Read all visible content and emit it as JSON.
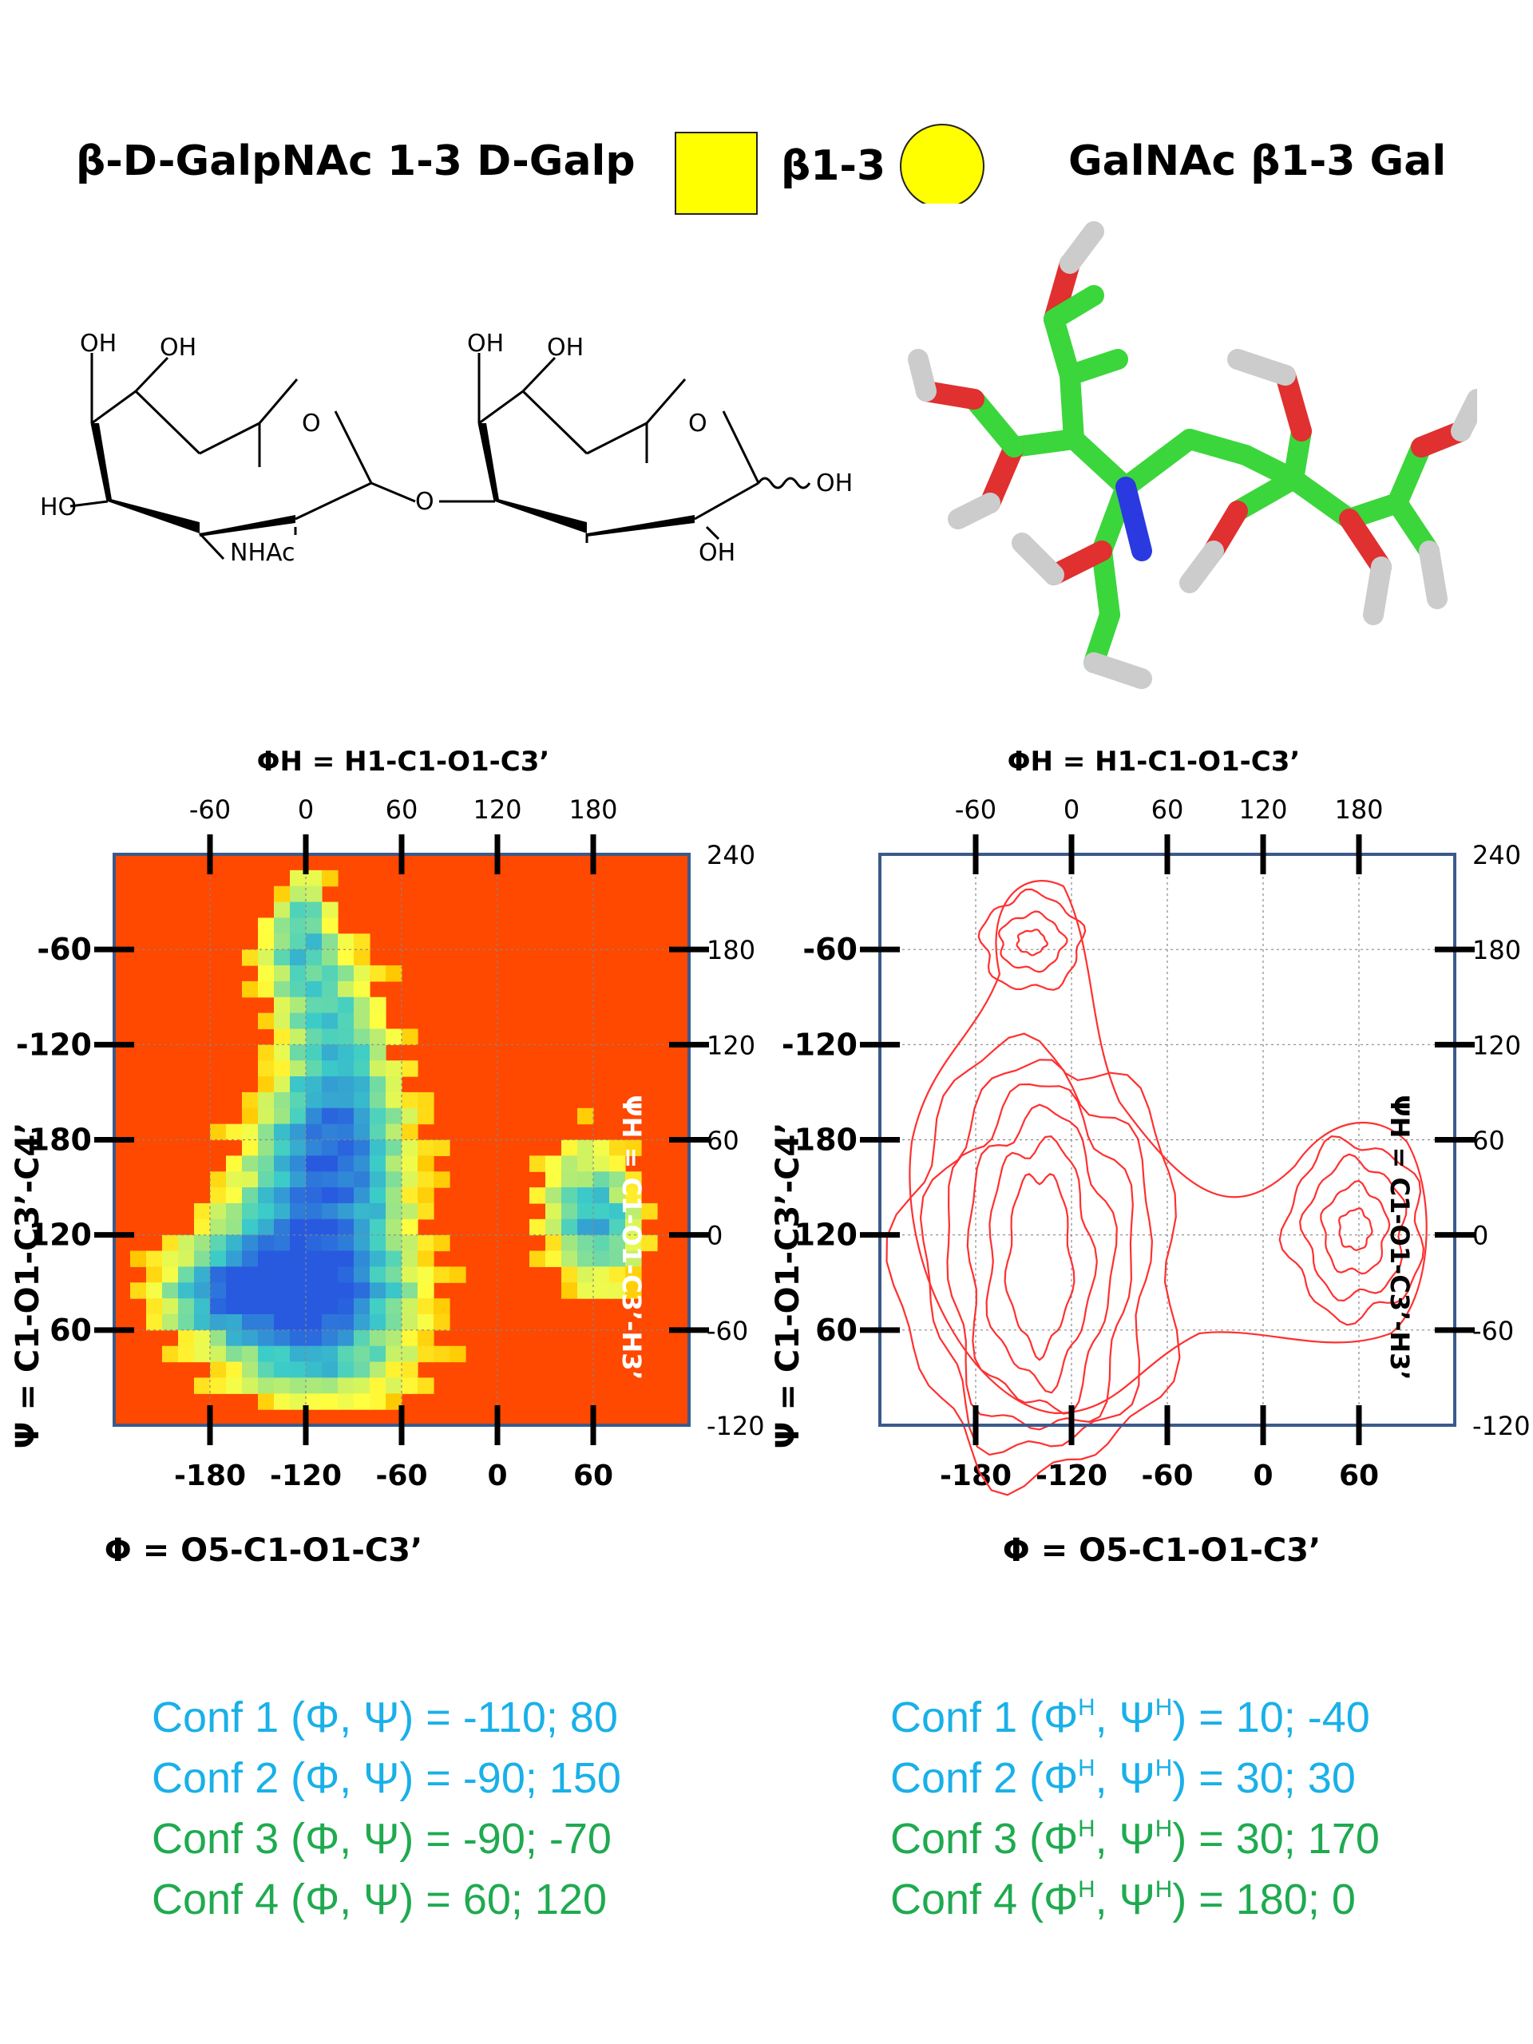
{
  "header": {
    "left_title": "β-D-GalpNAc 1-3 D-Galp",
    "linkage": "β1-3",
    "right_title": "GalNAc β1-3 Gal",
    "colors": {
      "square": "#ffff00",
      "circle": "#ffff00"
    }
  },
  "structure_2d": {
    "labels": [
      "OH",
      "OH",
      "O",
      "HO",
      "NHAc",
      "O",
      "OH",
      "OH",
      "O",
      "OH",
      "OH"
    ]
  },
  "plots": {
    "top_axis_label": "ΦH = H1-C1-O1-C3’",
    "top_ticks": [
      "-60",
      "0",
      "60",
      "120",
      "180"
    ],
    "bottom_axis_label": "Φ = O5-C1-O1-C3’",
    "bottom_ticks": [
      "-180",
      "-120",
      "-60",
      "0",
      "60"
    ],
    "left_axis_label": "Ψ = C1-O1-C3’-C4’",
    "left_ticks": [
      "-60",
      "-120",
      "180",
      "120",
      "60"
    ],
    "right_axis_label": "ΨH = C1-O1-C3’-H3’",
    "right_ticks": [
      "240",
      "180",
      "120",
      "60",
      "0",
      "-60",
      "-120"
    ]
  },
  "chart_data": [
    {
      "type": "heatmap",
      "x_axis": "Φ = O5-C1-O1-C3’",
      "y_axis": "Ψ = C1-O1-C3’-C4’",
      "colors": {
        "background": "#ff4800",
        "high": "#2a5ae0",
        "mid": "#3ccfd0",
        "low": "#ffff40"
      },
      "populated_regions": [
        {
          "phi": -110,
          "psi": 80
        },
        {
          "phi": -90,
          "psi": 150
        },
        {
          "phi": -90,
          "psi": -70
        },
        {
          "phi": 60,
          "psi": 120
        }
      ]
    },
    {
      "type": "contour",
      "x_axis": "Φ = O5-C1-O1-C3’",
      "y_axis": "Ψ = C1-O1-C3’-C4’",
      "colors": {
        "line": "#ff3030"
      }
    }
  ],
  "conformations": {
    "left": [
      {
        "name": "Conf 1",
        "text": "Conf 1 (Φ, Ψ) = -110; 80",
        "color": "#1ab0e8"
      },
      {
        "name": "Conf 2",
        "text": "Conf 2 (Φ, Ψ) =  -90; 150",
        "color": "#1ab0e8"
      },
      {
        "name": "Conf 3",
        "text": "Conf 3 (Φ, Ψ) =  -90; -70",
        "color": "#1faa50"
      },
      {
        "name": "Conf 4",
        "text": "Conf 4 (Φ, Ψ) =   60; 120",
        "color": "#1faa50"
      }
    ],
    "right": [
      {
        "prefix": "Conf 1 (Φ",
        "mid": ", Ψ",
        "suffix": ") = 10; -40",
        "color": "#1ab0e8"
      },
      {
        "prefix": "Conf 2 (Φ",
        "mid": ", Ψ",
        "suffix": ") = 30; 30",
        "color": "#1ab0e8"
      },
      {
        "prefix": "Conf 3 (Φ",
        "mid": ", Ψ",
        "suffix": ") = 30; 170",
        "color": "#1faa50"
      },
      {
        "prefix": "Conf 4 (Φ",
        "mid": ", Ψ",
        "suffix": ") = 180; 0",
        "color": "#1faa50"
      }
    ],
    "sup": "H"
  }
}
